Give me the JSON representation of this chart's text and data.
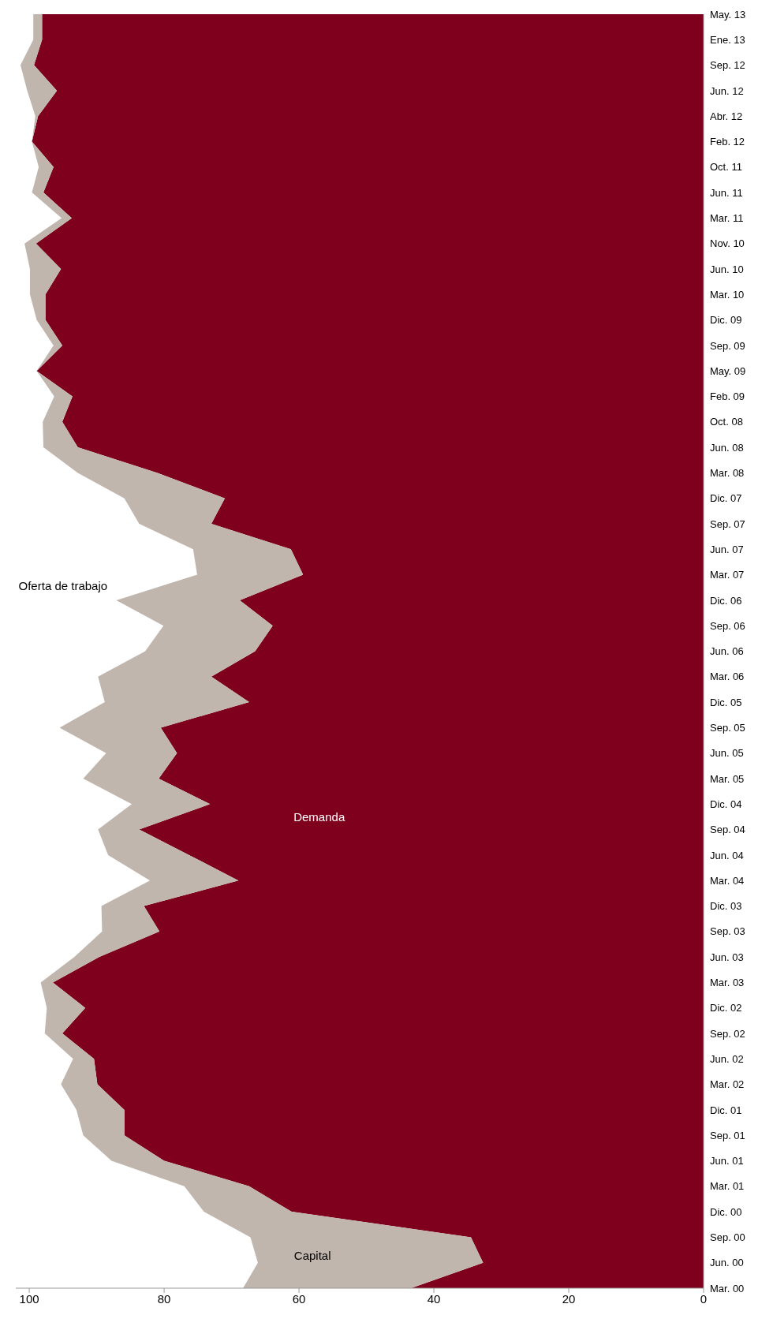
{
  "chart_data": {
    "type": "area",
    "stacked": true,
    "categories": [
      "May. 13",
      "Ene. 13",
      "Sep. 12",
      "Jun. 12",
      "Abr. 12",
      "Feb. 12",
      "Oct. 11",
      "Jun. 11",
      "Mar. 11",
      "Nov. 10",
      "Jun. 10",
      "Mar. 10",
      "Dic. 09",
      "Sep. 09",
      "May. 09",
      "Feb. 09",
      "Oct. 08",
      "Jun. 08",
      "Mar. 08",
      "Dic. 07",
      "Sep. 07",
      "Jun. 07",
      "Mar. 07",
      "Dic. 06",
      "Sep. 06",
      "Jun. 06",
      "Mar. 06",
      "Dic. 05",
      "Sep. 05",
      "Jun. 05",
      "Mar. 05",
      "Dic. 04",
      "Sep. 04",
      "Jun. 04",
      "Mar. 04",
      "Dic. 03",
      "Sep. 03",
      "Jun. 03",
      "Mar. 03",
      "Dic. 02",
      "Sep. 02",
      "Jun. 02",
      "Mar. 02",
      "Dic. 01",
      "Sep. 01",
      "Jun. 01",
      "Mar. 01",
      "Dic. 00",
      "Sep. 00",
      "Jun. 00",
      "Mar. 00"
    ],
    "series": [
      {
        "name": "Demanda",
        "color": "#7f001c",
        "values": [
          98.1,
          98.1,
          99.3,
          95.9,
          98.7,
          99.6,
          96.4,
          97.9,
          93.7,
          99.0,
          95.3,
          97.6,
          97.6,
          95.1,
          98.9,
          93.6,
          95.1,
          92.8,
          81.0,
          71.0,
          73.0,
          61.2,
          59.4,
          68.8,
          63.9,
          66.5,
          73.0,
          67.4,
          80.5,
          78.1,
          80.8,
          73.2,
          83.7,
          76.3,
          69.0,
          83.0,
          80.7,
          89.6,
          96.5,
          91.7,
          95.1,
          90.4,
          89.9,
          85.9,
          85.9,
          80.0,
          67.4,
          61.1,
          34.5,
          32.7,
          43.4
        ]
      },
      {
        "name": "Capital",
        "color": "#c0b6ad",
        "values": [
          1.3,
          1.3,
          2.0,
          4.4,
          0.4,
          0,
          2.2,
          1.7,
          1.5,
          1.7,
          4.6,
          2.3,
          1.3,
          1.3,
          0,
          2.7,
          2.9,
          5.1,
          11.8,
          14.9,
          10.7,
          14.5,
          15.7,
          18.3,
          16.2,
          16.3,
          16.8,
          21.4,
          15.0,
          10.5,
          11.2,
          11.6,
          6.1,
          12.0,
          13.1,
          6.3,
          8.5,
          3.7,
          1.8,
          5.7,
          2.6,
          3.1,
          5.4,
          7.1,
          6.1,
          7.8,
          9.6,
          13.0,
          32.7,
          33.4,
          24.9
        ]
      }
    ],
    "orientation": "horizontal",
    "xlim": [
      102,
      0
    ],
    "xticks": [
      0,
      20,
      40,
      60,
      80,
      100
    ],
    "annotations": [
      "Oferta de trabajo"
    ]
  }
}
